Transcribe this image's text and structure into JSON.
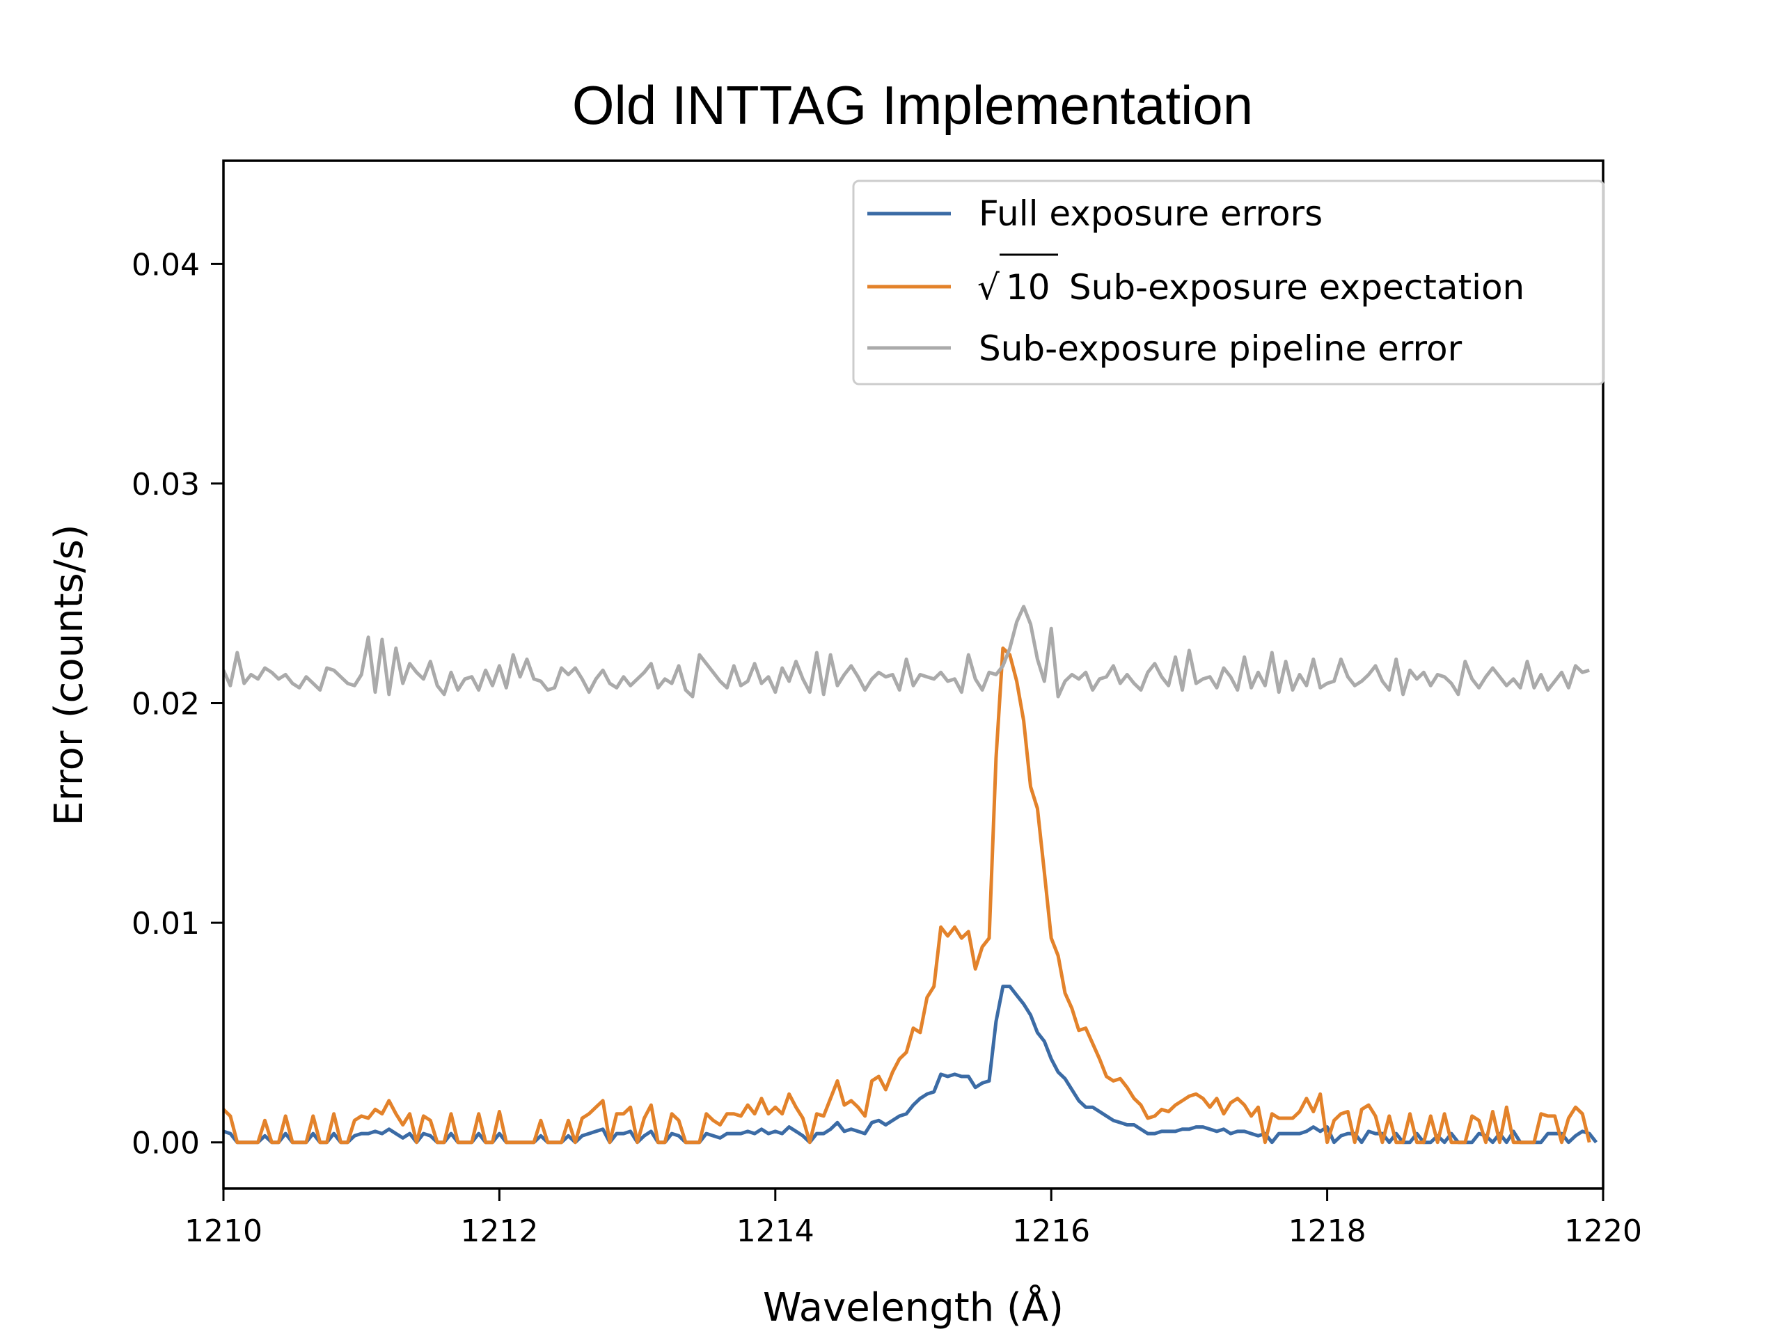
{
  "chart_data": {
    "type": "line",
    "title": "Old INTTAG Implementation",
    "xlabel": "Wavelength (Å)",
    "ylabel": "Error (counts/s)",
    "xlim": [
      1210,
      1220
    ],
    "ylim": [
      -0.0021,
      0.0447
    ],
    "xticks": [
      1210,
      1212,
      1214,
      1216,
      1218,
      1220
    ],
    "xtick_labels": [
      "1210",
      "1212",
      "1214",
      "1216",
      "1218",
      "1220"
    ],
    "yticks": [
      0.0,
      0.01,
      0.02,
      0.03,
      0.04
    ],
    "ytick_labels": [
      "0.00",
      "0.01",
      "0.02",
      "0.03",
      "0.04"
    ],
    "grid": false,
    "legend": {
      "placement": "top-right",
      "entries": [
        {
          "label": "Full exposure errors",
          "series": 0
        },
        {
          "label_prefix": "√",
          "label_radicand": "10",
          "label": " Sub-exposure expectation",
          "series": 1
        },
        {
          "label": "Sub-exposure pipeline error",
          "series": 2
        }
      ]
    },
    "x_start": 1210,
    "x_step": 0.05,
    "series": [
      {
        "name": "Full exposure errors",
        "color": "#3b6ba5",
        "values": [
          0.0005,
          0.0004,
          0,
          0,
          0,
          0,
          0.0003,
          0,
          0,
          0.0004,
          0,
          0,
          0,
          0.0004,
          0,
          0,
          0.0004,
          0,
          0,
          0.0003,
          0.0004,
          0.0004,
          0.0005,
          0.0004,
          0.0006,
          0.0004,
          0.0002,
          0.0004,
          0,
          0.0004,
          0.0003,
          0,
          0,
          0.0004,
          0,
          0,
          0,
          0.0004,
          0,
          0,
          0.0004,
          0,
          0,
          0,
          0,
          0,
          0.0003,
          0,
          0,
          0,
          0.0003,
          0,
          0.0003,
          0.0004,
          0.0005,
          0.0006,
          0,
          0.0004,
          0.0004,
          0.0005,
          0,
          0.0003,
          0.0005,
          0,
          0,
          0.0004,
          0.0003,
          0,
          0,
          0,
          0.0004,
          0.0003,
          0.0002,
          0.0004,
          0.0004,
          0.0004,
          0.0005,
          0.0004,
          0.0006,
          0.0004,
          0.0005,
          0.0004,
          0.0007,
          0.0005,
          0.0003,
          0,
          0.0004,
          0.0004,
          0.0006,
          0.0009,
          0.0005,
          0.0006,
          0.0005,
          0.0004,
          0.0009,
          0.001,
          0.0008,
          0.001,
          0.0012,
          0.0013,
          0.0017,
          0.002,
          0.0022,
          0.0023,
          0.0031,
          0.003,
          0.0031,
          0.003,
          0.003,
          0.0025,
          0.0027,
          0.0028,
          0.0055,
          0.0071,
          0.0071,
          0.0067,
          0.0063,
          0.0058,
          0.005,
          0.0046,
          0.0038,
          0.0032,
          0.0029,
          0.0024,
          0.0019,
          0.0016,
          0.0016,
          0.0014,
          0.0012,
          0.001,
          0.0009,
          0.0008,
          0.0008,
          0.0006,
          0.0004,
          0.0004,
          0.0005,
          0.0005,
          0.0005,
          0.0006,
          0.0006,
          0.0007,
          0.0007,
          0.0006,
          0.0005,
          0.0006,
          0.0004,
          0.0005,
          0.0005,
          0.0004,
          0.0003,
          0.0004,
          0,
          0.0004,
          0.0004,
          0.0004,
          0.0004,
          0.0005,
          0.0007,
          0.0005,
          0.0007,
          0,
          0.0003,
          0.0004,
          0.0004,
          0,
          0.0005,
          0.0004,
          0.0004,
          0,
          0.0004,
          0,
          0,
          0.0004,
          0,
          0,
          0.0003,
          0,
          0.0004,
          0,
          0,
          0,
          0.0004,
          0.0003,
          0,
          0.0004,
          0,
          0.0005,
          0,
          0,
          0,
          0,
          0.0004,
          0.0004,
          0.0004,
          0,
          0.0003,
          0.0005,
          0.0004,
          0
        ]
      },
      {
        "name": "√10 Sub-exposure expectation",
        "color": "#e3822a",
        "values": [
          0.0015,
          0.0012,
          0,
          0,
          0,
          0,
          0.001,
          0,
          0,
          0.0012,
          0,
          0,
          0,
          0.0012,
          0,
          0,
          0.0013,
          0,
          0,
          0.001,
          0.0012,
          0.0011,
          0.0015,
          0.0013,
          0.0019,
          0.0013,
          0.0008,
          0.0013,
          0,
          0.0012,
          0.001,
          0,
          0,
          0.0013,
          0,
          0,
          0,
          0.0013,
          0,
          0,
          0.0014,
          0,
          0,
          0,
          0,
          0,
          0.001,
          0,
          0,
          0,
          0.001,
          0,
          0.0011,
          0.0013,
          0.0016,
          0.0019,
          0,
          0.0013,
          0.0013,
          0.0016,
          0,
          0.0011,
          0.0017,
          0,
          0,
          0.0013,
          0.001,
          0,
          0,
          0,
          0.0013,
          0.001,
          0.0008,
          0.0013,
          0.0013,
          0.0012,
          0.0017,
          0.0013,
          0.002,
          0.0013,
          0.0016,
          0.0013,
          0.0022,
          0.0016,
          0.0011,
          0,
          0.0013,
          0.0012,
          0.002,
          0.0028,
          0.0017,
          0.0019,
          0.0016,
          0.0012,
          0.0028,
          0.003,
          0.0024,
          0.0032,
          0.0038,
          0.0041,
          0.0052,
          0.005,
          0.0066,
          0.0071,
          0.0098,
          0.0094,
          0.0098,
          0.0093,
          0.0096,
          0.0079,
          0.0089,
          0.0093,
          0.0175,
          0.0225,
          0.0222,
          0.021,
          0.0192,
          0.0162,
          0.0152,
          0.0123,
          0.0093,
          0.0085,
          0.0068,
          0.0061,
          0.0051,
          0.0052,
          0.0045,
          0.0038,
          0.003,
          0.0028,
          0.0029,
          0.0025,
          0.002,
          0.0017,
          0.0011,
          0.0012,
          0.0015,
          0.0014,
          0.0017,
          0.0019,
          0.0021,
          0.0022,
          0.002,
          0.0016,
          0.002,
          0.0013,
          0.0018,
          0.002,
          0.0017,
          0.0012,
          0.0016,
          0,
          0.0013,
          0.0011,
          0.0011,
          0.0011,
          0.0014,
          0.002,
          0.0014,
          0.0022,
          0,
          0.001,
          0.0013,
          0.0014,
          0,
          0.0015,
          0.0017,
          0.0012,
          0,
          0.0012,
          0,
          0,
          0.0013,
          0,
          0,
          0.0012,
          0,
          0.0013,
          0,
          0,
          0,
          0.0012,
          0.001,
          0,
          0.0014,
          0,
          0.0016,
          0,
          0,
          0,
          0,
          0.0013,
          0.0012,
          0.0012,
          0,
          0.0011,
          0.0016,
          0.0013,
          0
        ]
      },
      {
        "name": "Sub-exposure pipeline error",
        "color": "#aaaaaa",
        "values": [
          0.0215,
          0.0208,
          0.0223,
          0.0209,
          0.0213,
          0.0211,
          0.0216,
          0.0214,
          0.0211,
          0.0213,
          0.0209,
          0.0207,
          0.0212,
          0.0209,
          0.0206,
          0.0216,
          0.0215,
          0.0212,
          0.0209,
          0.0208,
          0.0213,
          0.023,
          0.0205,
          0.0229,
          0.0204,
          0.0225,
          0.0209,
          0.0218,
          0.0214,
          0.0211,
          0.0219,
          0.0208,
          0.0204,
          0.0214,
          0.0206,
          0.0211,
          0.0212,
          0.0206,
          0.0215,
          0.0208,
          0.0217,
          0.0207,
          0.0222,
          0.0212,
          0.022,
          0.0211,
          0.021,
          0.0206,
          0.0207,
          0.0216,
          0.0213,
          0.0216,
          0.0211,
          0.0205,
          0.0211,
          0.0215,
          0.0209,
          0.0207,
          0.0212,
          0.0208,
          0.0211,
          0.0214,
          0.0218,
          0.0207,
          0.0211,
          0.0209,
          0.0217,
          0.0206,
          0.0203,
          0.0222,
          0.0218,
          0.0214,
          0.021,
          0.0207,
          0.0217,
          0.0208,
          0.021,
          0.0218,
          0.0209,
          0.0212,
          0.0205,
          0.0216,
          0.021,
          0.0219,
          0.0211,
          0.0205,
          0.0223,
          0.0204,
          0.0222,
          0.0208,
          0.0213,
          0.0217,
          0.0212,
          0.0206,
          0.0211,
          0.0214,
          0.0212,
          0.0213,
          0.0206,
          0.022,
          0.0208,
          0.0213,
          0.0212,
          0.0211,
          0.0214,
          0.021,
          0.0211,
          0.0205,
          0.0222,
          0.0211,
          0.0206,
          0.0214,
          0.0213,
          0.0217,
          0.0225,
          0.0237,
          0.0244,
          0.0236,
          0.022,
          0.021,
          0.0234,
          0.0203,
          0.021,
          0.0213,
          0.0211,
          0.0214,
          0.0206,
          0.0211,
          0.0212,
          0.0217,
          0.0209,
          0.0213,
          0.0209,
          0.0206,
          0.0214,
          0.0218,
          0.0212,
          0.0208,
          0.0221,
          0.0206,
          0.0224,
          0.0209,
          0.0211,
          0.0212,
          0.0207,
          0.0216,
          0.0212,
          0.0206,
          0.0221,
          0.0207,
          0.0214,
          0.0208,
          0.0223,
          0.0205,
          0.0219,
          0.0206,
          0.0213,
          0.0208,
          0.022,
          0.0207,
          0.0209,
          0.021,
          0.022,
          0.0212,
          0.0208,
          0.021,
          0.0213,
          0.0217,
          0.021,
          0.0206,
          0.022,
          0.0204,
          0.0215,
          0.0211,
          0.0214,
          0.0208,
          0.0213,
          0.0212,
          0.0209,
          0.0204,
          0.0219,
          0.0211,
          0.0207,
          0.0212,
          0.0216,
          0.0212,
          0.0208,
          0.0211,
          0.0207,
          0.0219,
          0.0207,
          0.0213,
          0.0206,
          0.021,
          0.0214,
          0.0207,
          0.0217,
          0.0214,
          0.0215
        ]
      }
    ]
  }
}
